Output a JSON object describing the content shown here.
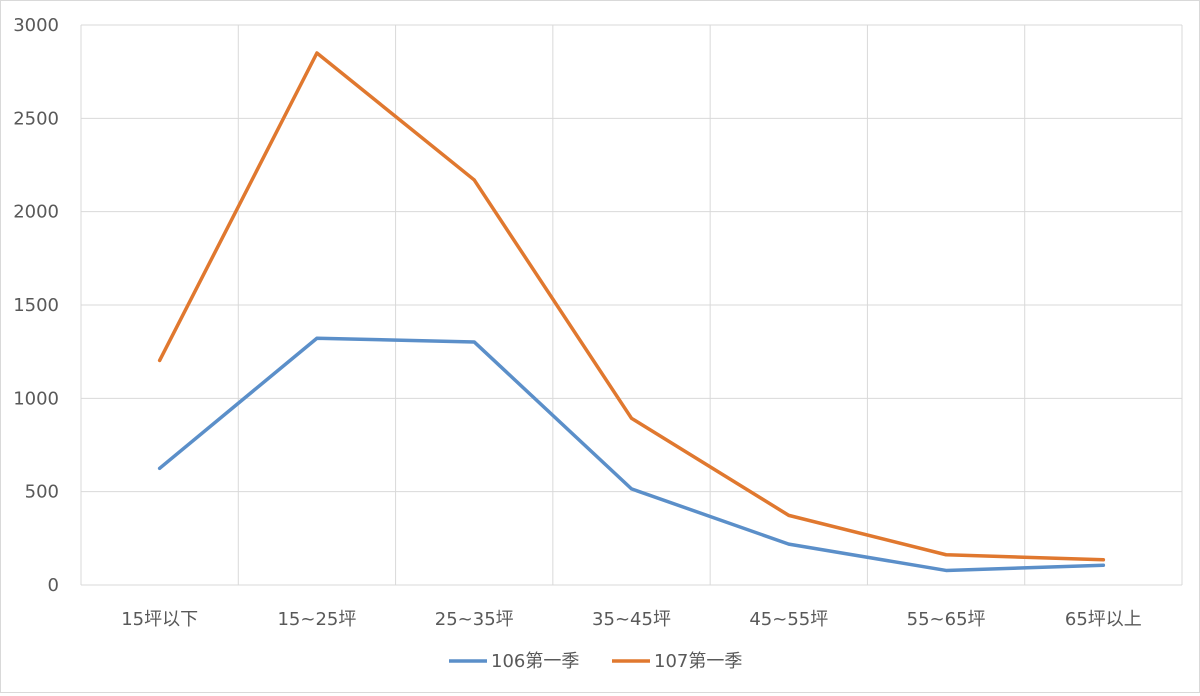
{
  "chart_data": {
    "type": "line",
    "categories": [
      "15坪以下",
      "15~25坪",
      "25~35坪",
      "35~45坪",
      "45~55坪",
      "55~65坪",
      "65坪以上"
    ],
    "series": [
      {
        "name": "106第一季",
        "color": "#5B8FC9",
        "values": [
          625,
          1322,
          1302,
          515,
          219,
          78,
          106
        ]
      },
      {
        "name": "107第一季",
        "color": "#E0782F",
        "values": [
          1203,
          2850,
          2170,
          893,
          373,
          162,
          135
        ]
      }
    ],
    "ylim": [
      0,
      3000
    ],
    "yticks": [
      0,
      500,
      1000,
      1500,
      2000,
      2500,
      3000
    ],
    "grid": true,
    "legend_position": "bottom",
    "title": "",
    "xlabel": "",
    "ylabel": ""
  }
}
